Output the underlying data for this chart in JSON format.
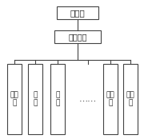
{
  "title_box": "总能耗",
  "mid_box": "智能电表",
  "leaf_boxes": [
    "白炽\n灯",
    "空\n调",
    "电\n脑",
    "……",
    "微波\n炉",
    "电冰\n箱"
  ],
  "bg_color": "#ffffff",
  "box_edge_color": "#444444",
  "text_color": "#222222",
  "line_color": "#444444",
  "fig_width": 1.95,
  "fig_height": 1.74,
  "dpi": 100
}
